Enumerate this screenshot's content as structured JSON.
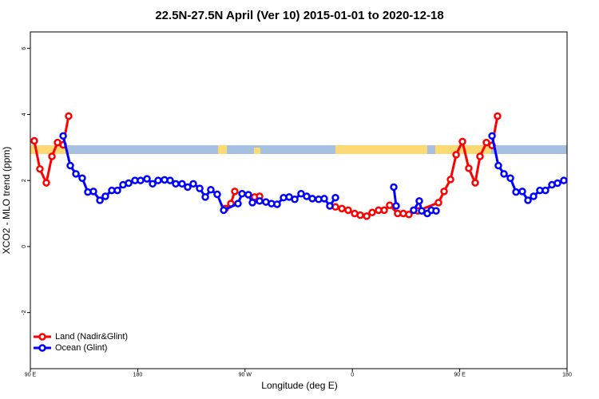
{
  "chart_data": {
    "type": "line",
    "title": "22.5N-27.5N April (Ver 10)   2015-01-01 to 2020-12-18",
    "xlabel": "Longitude (deg E)",
    "ylabel": "XCO2 - MLO trend (ppm)",
    "xlim": [
      90,
      540
    ],
    "xticks": [
      {
        "value": 90,
        "label": "90 E"
      },
      180,
      {
        "value": 270,
        "label": "90 W"
      },
      {
        "value": 360,
        "label": "0"
      },
      {
        "value": 450,
        "label": "90 E"
      },
      {
        "value": 540,
        "label": "180"
      }
    ],
    "ylim": [
      -3.7,
      6.5
    ],
    "yticks": [
      -2,
      0,
      2,
      4,
      6
    ],
    "legend": "lower left",
    "series": [
      {
        "name": "Land (Nadir&Glint)",
        "color": "#ff0000",
        "x": [
          93.3,
          98.0,
          103.4,
          108.1,
          112.8,
          117.5,
          122.1,
          null,
          253.4,
          258.1,
          261.4,
          null,
          278.0,
          282.2,
          null,
          345.8,
          351.2,
          356.5,
          361.9,
          366.6,
          372.0,
          376.6,
          382.0,
          386.7,
          391.3,
          398.0,
          402.7,
          407.4,
          414.8,
          432.2,
          436.9,
          442.3,
          447.0,
          452.3,
          457.6,
          463.0,
          467.0,
          472.4,
          477.1,
          481.7
        ],
        "values": [
          3.2,
          2.35,
          1.93,
          2.73,
          3.15,
          3.08,
          3.95,
          null,
          1.15,
          1.3,
          1.67,
          null,
          1.5,
          1.52,
          null,
          1.2,
          1.15,
          1.1,
          1.0,
          0.95,
          0.92,
          1.03,
          1.1,
          1.1,
          1.25,
          1.0,
          1.0,
          0.97,
          1.08,
          1.33,
          1.67,
          2.03,
          2.78,
          3.18,
          2.37,
          1.93,
          2.73,
          3.15,
          3.06,
          3.95
        ]
      },
      {
        "name": "Ocean (Glint)",
        "color": "#0000ff",
        "x": [
          117.5,
          123.5,
          128.2,
          133.5,
          138.2,
          142.9,
          148.3,
          152.9,
          158.3,
          163.0,
          167.7,
          172.4,
          177.7,
          182.4,
          187.8,
          192.5,
          197.1,
          202.5,
          207.2,
          211.9,
          217.2,
          221.9,
          226.6,
          232.0,
          236.7,
          241.3,
          246.7,
          252.1,
          264.1,
          267.5,
          272.8,
          276.2,
          282.2,
          287.5,
          292.2,
          296.9,
          302.3,
          307.0,
          311.7,
          317.0,
          321.7,
          326.4,
          331.7,
          336.4,
          341.1,
          345.8,
          null,
          394.7,
          396.7,
          null,
          411.4,
          416.1,
          418.1,
          422.8,
          426.2,
          430.2,
          null,
          477.1,
          482.4,
          487.1,
          492.5,
          497.2,
          502.5,
          507.2,
          511.9,
          517.2,
          521.9,
          527.3,
          532.0,
          537.3
        ],
        "values": [
          3.35,
          2.45,
          2.2,
          2.07,
          1.65,
          1.67,
          1.4,
          1.52,
          1.7,
          1.7,
          1.87,
          1.92,
          2.0,
          2.0,
          2.05,
          1.9,
          2.0,
          2.02,
          2.0,
          1.9,
          1.9,
          1.8,
          1.9,
          1.76,
          1.5,
          1.72,
          1.58,
          1.1,
          1.3,
          1.6,
          1.57,
          1.33,
          1.38,
          1.35,
          1.3,
          1.28,
          1.48,
          1.5,
          1.43,
          1.6,
          1.52,
          1.45,
          1.43,
          1.45,
          1.23,
          1.48,
          null,
          1.8,
          1.23,
          null,
          1.1,
          1.38,
          1.08,
          1.0,
          1.1,
          1.08,
          null,
          3.35,
          2.45,
          2.2,
          2.07,
          1.65,
          1.67,
          1.4,
          1.52,
          1.7,
          1.7,
          1.87,
          1.92,
          2.0
        ]
      }
    ]
  }
}
